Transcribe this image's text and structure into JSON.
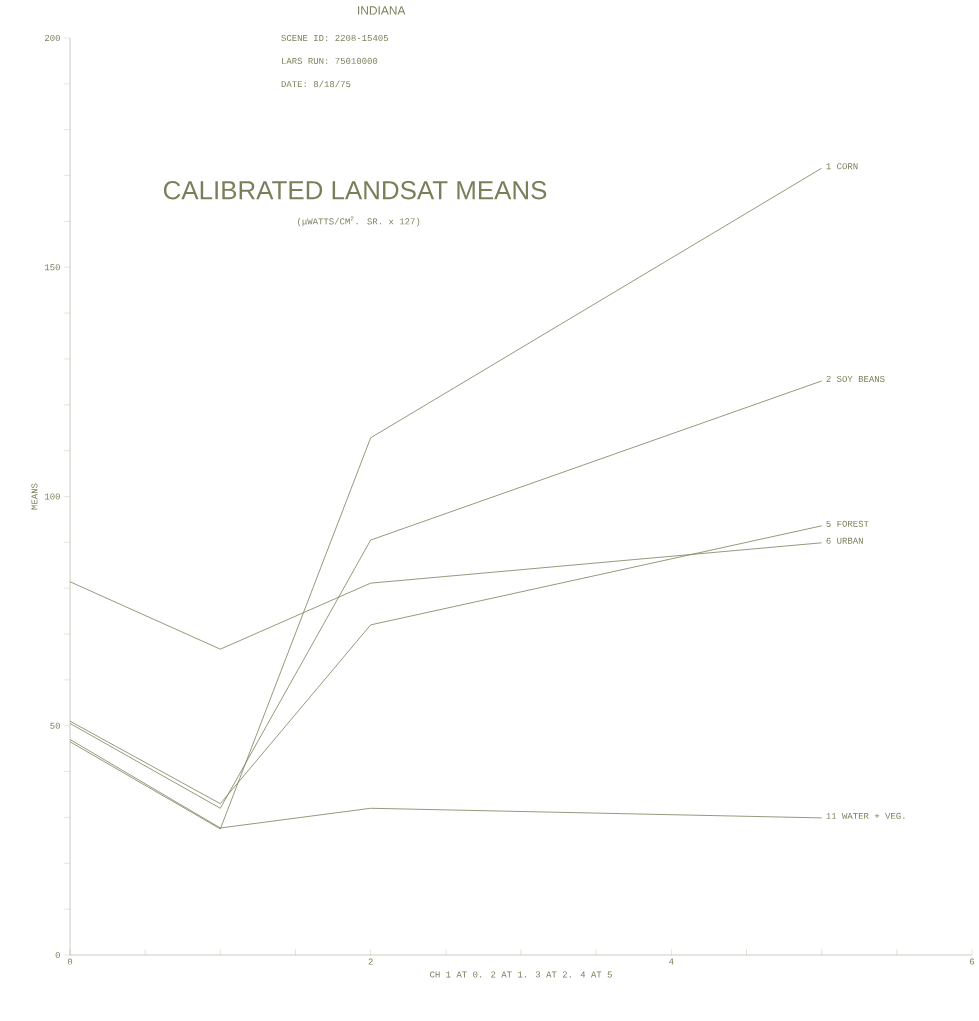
{
  "chart_data": {
    "type": "line",
    "title": "CALIBRATED LANDSAT MEANS",
    "subtitle": "(μWATTS/CM$^{2}$. SR. x 127)",
    "xlabel": "CH 1 AT 0. 2 AT 1. 3 AT 2. 4 AT 5",
    "ylabel": "MEANS",
    "annotations": [
      "INDIANA",
      "SCENE ID:  2208-15405",
      "LARS RUN:  75010000",
      "DATE:  8/18/75"
    ],
    "x": [
      0,
      1,
      2,
      5
    ],
    "series": [
      {
        "name": "1 CORN",
        "color": "#7a7f5a",
        "values": [
          46.5,
          27.5,
          112.8,
          171.6
        ]
      },
      {
        "name": "2 SOY BEANS",
        "color": "#7a7f5a",
        "values": [
          50.5,
          32,
          90.5,
          125.2
        ]
      },
      {
        "name": "5 FOREST",
        "color": "#7a7f5a",
        "values": [
          51,
          33,
          72,
          93.6
        ]
      },
      {
        "name": "6 URBAN",
        "color": "#7a7f5a",
        "values": [
          81.4,
          66.7,
          81.1,
          89.9
        ]
      },
      {
        "name": "11 WATER + VEG.",
        "color": "#7a7f5a",
        "values": [
          47,
          27.7,
          32,
          29.9
        ]
      }
    ],
    "xlim": [
      0,
      6
    ],
    "ylim": [
      0,
      200
    ],
    "xticks": [
      0,
      {
        "value": 0.5,
        "label": null
      },
      {
        "value": 1,
        "label": null
      },
      {
        "value": 1.5,
        "label": null
      },
      2,
      {
        "value": 2.5,
        "label": null
      },
      {
        "value": 3,
        "label": null
      },
      {
        "value": 3.5,
        "label": null
      },
      4,
      {
        "value": 4.5,
        "label": null
      },
      {
        "value": 5,
        "label": null
      },
      {
        "value": 5.5,
        "label": null
      },
      6
    ],
    "yticks": [
      0,
      {
        "value": 10,
        "label": null
      },
      {
        "value": 20,
        "label": null
      },
      {
        "value": 30,
        "label": null
      },
      {
        "value": 40,
        "label": null
      },
      50,
      {
        "value": 60,
        "label": null
      },
      {
        "value": 70,
        "label": null
      },
      {
        "value": 80,
        "label": null
      },
      {
        "value": 90,
        "label": null
      },
      100,
      {
        "value": 110,
        "label": null
      },
      {
        "value": 120,
        "label": null
      },
      {
        "value": 130,
        "label": null
      },
      {
        "value": 140,
        "label": null
      },
      150,
      {
        "value": 160,
        "label": null
      },
      {
        "value": 170,
        "label": null
      },
      {
        "value": 180,
        "label": null
      },
      {
        "value": 190,
        "label": null
      },
      200
    ]
  }
}
